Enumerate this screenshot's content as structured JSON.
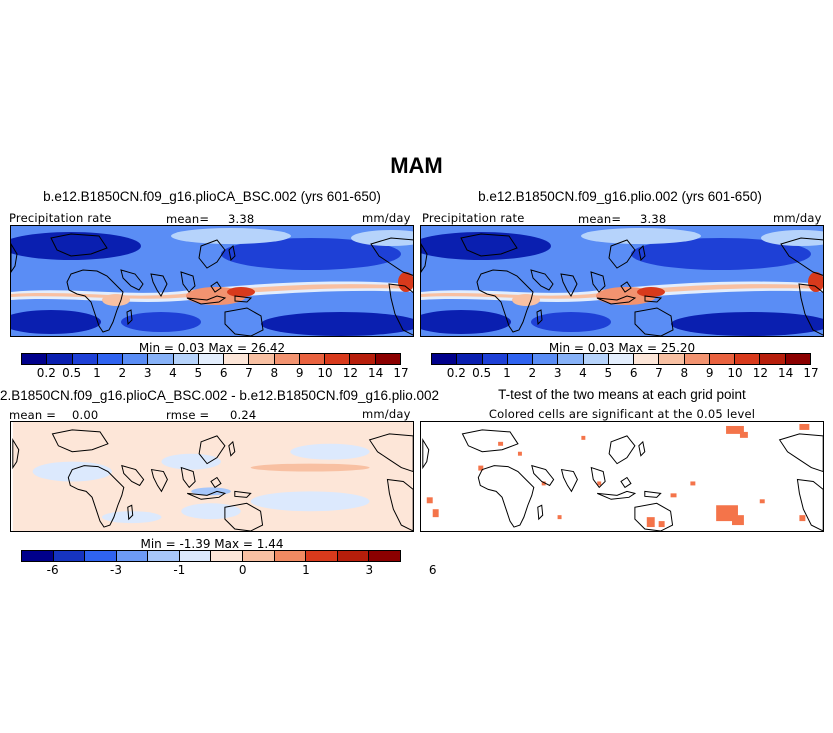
{
  "title": "MAM",
  "panels": {
    "a": {
      "case": "b.e12.B1850CN.f09_g16.plioCA_BSC.002 (yrs 601-650)",
      "field": "Precipitation rate",
      "mean_label": "mean=",
      "mean_value": "3.38",
      "units": "mm/day",
      "minmax": "Min =    0.03 Max =   26.42"
    },
    "b": {
      "case": "b.e12.B1850CN.f09_g16.plio.002 (yrs 601-650)",
      "field": "Precipitation rate",
      "mean_label": "mean=",
      "mean_value": "3.38",
      "units": "mm/day",
      "minmax": "Min =    0.03 Max =   25.20"
    },
    "c": {
      "case": "2.B1850CN.f09_g16.plioCA_BSC.002 - b.e12.B1850CN.f09_g16.plio.002",
      "mean_label": "mean =",
      "mean_value": "0.00",
      "rmse_label": "rmse =",
      "rmse_value": "0.24",
      "units": "mm/day",
      "minmax": "Min =   -1.39 Max =    1.44"
    },
    "d": {
      "case": "T-test of the two means at each grid point",
      "note": "Colored cells are significant at the 0.05 level"
    }
  },
  "colorbar_abs": {
    "colors": [
      "#00008b",
      "#0a1fb0",
      "#1e40d6",
      "#2f63f0",
      "#5a8df5",
      "#87b2f8",
      "#b6d3fb",
      "#e3eefd",
      "#fde6d8",
      "#f8c0a2",
      "#f29370",
      "#e9623f",
      "#d83a1c",
      "#b71e0b",
      "#8b0000"
    ],
    "ticks": [
      "0.2",
      "0.5",
      "1",
      "2",
      "3",
      "4",
      "5",
      "6",
      "7",
      "8",
      "9",
      "10",
      "12",
      "14",
      "17"
    ]
  },
  "colorbar_diff": {
    "colors": [
      "#00008b",
      "#1634c0",
      "#2f63f0",
      "#6d9bf6",
      "#a7c7fa",
      "#dce9fd",
      "#fde6d8",
      "#f8c0a2",
      "#f08a62",
      "#d83a1c",
      "#b71e0b",
      "#8b0000"
    ],
    "ticks": [
      "-6",
      "-3",
      "-1",
      "0",
      "1",
      "3",
      "6"
    ]
  },
  "ttest_color": "#f4744a"
}
